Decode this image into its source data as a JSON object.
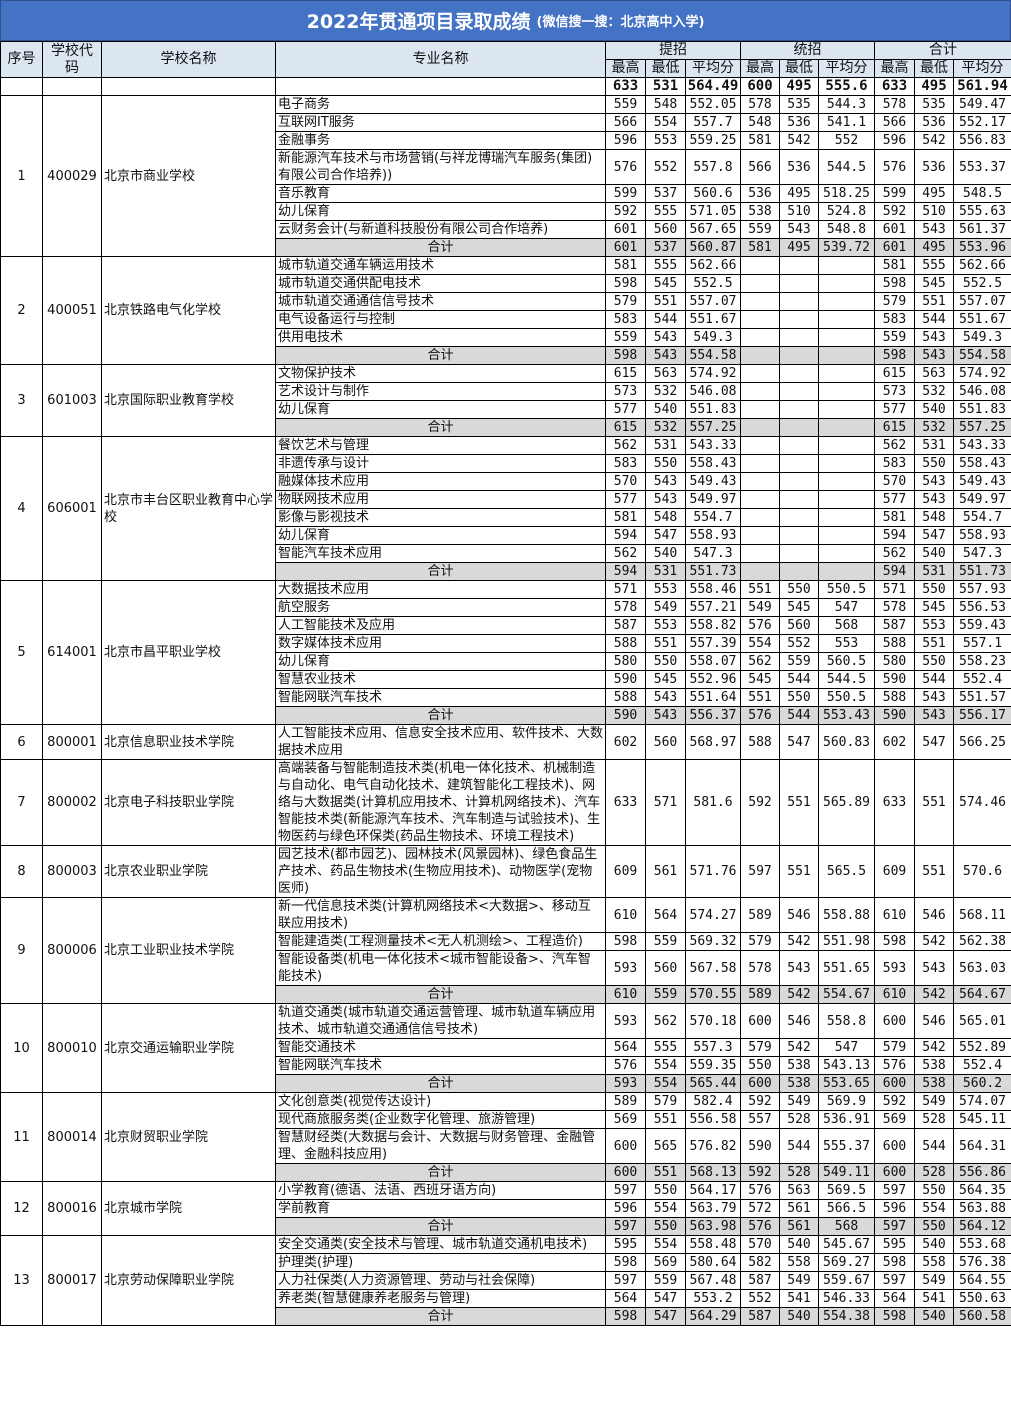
{
  "title": "2022年贯通项目录取成绩",
  "subtitle": "(微信搜一搜：北京高中入学)",
  "headers": {
    "no": "序号",
    "code": "学校代码",
    "school": "学校名称",
    "major": "专业名称",
    "groups": [
      "提招",
      "统招",
      "合计"
    ],
    "sub": [
      "最高",
      "最低",
      "平均分"
    ]
  },
  "summary": [
    "633",
    "531",
    "564.49",
    "600",
    "495",
    "555.6",
    "633",
    "495",
    "561.94"
  ],
  "total_label": "合计",
  "schools": [
    {
      "no": "1",
      "code": "400029",
      "name": "北京市商业学校",
      "majors": [
        [
          "电子商务",
          "559",
          "548",
          "552.05",
          "578",
          "535",
          "544.3",
          "578",
          "535",
          "549.47"
        ],
        [
          "互联网IT服务",
          "566",
          "554",
          "557.7",
          "548",
          "536",
          "541.1",
          "566",
          "536",
          "552.17"
        ],
        [
          "金融事务",
          "596",
          "553",
          "559.25",
          "581",
          "542",
          "552",
          "596",
          "542",
          "556.83"
        ],
        [
          "新能源汽车技术与市场营销(与祥龙博瑞汽车服务(集团)有限公司合作培养))",
          "576",
          "552",
          "557.8",
          "566",
          "536",
          "544.5",
          "576",
          "536",
          "553.37"
        ],
        [
          "音乐教育",
          "599",
          "537",
          "560.6",
          "536",
          "495",
          "518.25",
          "599",
          "495",
          "548.5"
        ],
        [
          "幼儿保育",
          "592",
          "555",
          "571.05",
          "538",
          "510",
          "524.8",
          "592",
          "510",
          "555.63"
        ],
        [
          "云财务会计(与新道科技股份有限公司合作培养)",
          "601",
          "560",
          "567.65",
          "559",
          "543",
          "548.8",
          "601",
          "543",
          "561.37"
        ]
      ],
      "total": [
        "601",
        "537",
        "560.87",
        "581",
        "495",
        "539.72",
        "601",
        "495",
        "553.96"
      ]
    },
    {
      "no": "2",
      "code": "400051",
      "name": "北京铁路电气化学校",
      "majors": [
        [
          "城市轨道交通车辆运用技术",
          "581",
          "555",
          "562.66",
          "",
          "",
          "",
          "581",
          "555",
          "562.66"
        ],
        [
          "城市轨道交通供配电技术",
          "598",
          "545",
          "552.5",
          "",
          "",
          "",
          "598",
          "545",
          "552.5"
        ],
        [
          "城市轨道交通通信信号技术",
          "579",
          "551",
          "557.07",
          "",
          "",
          "",
          "579",
          "551",
          "557.07"
        ],
        [
          "电气设备运行与控制",
          "583",
          "544",
          "551.67",
          "",
          "",
          "",
          "583",
          "544",
          "551.67"
        ],
        [
          "供用电技术",
          "559",
          "543",
          "549.3",
          "",
          "",
          "",
          "559",
          "543",
          "549.3"
        ]
      ],
      "total": [
        "598",
        "543",
        "554.58",
        "",
        "",
        "",
        "598",
        "543",
        "554.58"
      ]
    },
    {
      "no": "3",
      "code": "601003",
      "name": "北京国际职业教育学校",
      "majors": [
        [
          "文物保护技术",
          "615",
          "563",
          "574.92",
          "",
          "",
          "",
          "615",
          "563",
          "574.92"
        ],
        [
          "艺术设计与制作",
          "573",
          "532",
          "546.08",
          "",
          "",
          "",
          "573",
          "532",
          "546.08"
        ],
        [
          "幼儿保育",
          "577",
          "540",
          "551.83",
          "",
          "",
          "",
          "577",
          "540",
          "551.83"
        ]
      ],
      "total": [
        "615",
        "532",
        "557.25",
        "",
        "",
        "",
        "615",
        "532",
        "557.25"
      ]
    },
    {
      "no": "4",
      "code": "606001",
      "name": "北京市丰台区职业教育中心学校",
      "majors": [
        [
          "餐饮艺术与管理",
          "562",
          "531",
          "543.33",
          "",
          "",
          "",
          "562",
          "531",
          "543.33"
        ],
        [
          "非遗传承与设计",
          "583",
          "550",
          "558.43",
          "",
          "",
          "",
          "583",
          "550",
          "558.43"
        ],
        [
          "融媒体技术应用",
          "570",
          "543",
          "549.43",
          "",
          "",
          "",
          "570",
          "543",
          "549.43"
        ],
        [
          "物联网技术应用",
          "577",
          "543",
          "549.97",
          "",
          "",
          "",
          "577",
          "543",
          "549.97"
        ],
        [
          "影像与影视技术",
          "581",
          "548",
          "554.7",
          "",
          "",
          "",
          "581",
          "548",
          "554.7"
        ],
        [
          "幼儿保育",
          "594",
          "547",
          "558.93",
          "",
          "",
          "",
          "594",
          "547",
          "558.93"
        ],
        [
          "智能汽车技术应用",
          "562",
          "540",
          "547.3",
          "",
          "",
          "",
          "562",
          "540",
          "547.3"
        ]
      ],
      "total": [
        "594",
        "531",
        "551.73",
        "",
        "",
        "",
        "594",
        "531",
        "551.73"
      ]
    },
    {
      "no": "5",
      "code": "614001",
      "name": "北京市昌平职业学校",
      "majors": [
        [
          "大数据技术应用",
          "571",
          "553",
          "558.46",
          "551",
          "550",
          "550.5",
          "571",
          "550",
          "557.93"
        ],
        [
          "航空服务",
          "578",
          "549",
          "557.21",
          "549",
          "545",
          "547",
          "578",
          "545",
          "556.53"
        ],
        [
          "人工智能技术及应用",
          "587",
          "553",
          "558.82",
          "576",
          "560",
          "568",
          "587",
          "553",
          "559.43"
        ],
        [
          "数字媒体技术应用",
          "588",
          "551",
          "557.39",
          "554",
          "552",
          "553",
          "588",
          "551",
          "557.1"
        ],
        [
          "幼儿保育",
          "580",
          "550",
          "558.07",
          "562",
          "559",
          "560.5",
          "580",
          "550",
          "558.23"
        ],
        [
          "智慧农业技术",
          "590",
          "545",
          "552.96",
          "545",
          "544",
          "544.5",
          "590",
          "544",
          "552.4"
        ],
        [
          "智能网联汽车技术",
          "588",
          "543",
          "551.64",
          "551",
          "550",
          "550.5",
          "588",
          "543",
          "551.57"
        ]
      ],
      "total": [
        "590",
        "543",
        "556.37",
        "576",
        "544",
        "553.43",
        "590",
        "543",
        "556.17"
      ]
    },
    {
      "no": "6",
      "code": "800001",
      "name": "北京信息职业技术学院",
      "majors": [
        [
          "人工智能技术应用、信息安全技术应用、软件技术、大数据技术应用",
          "602",
          "560",
          "568.97",
          "588",
          "547",
          "560.83",
          "602",
          "547",
          "566.25"
        ]
      ]
    },
    {
      "no": "7",
      "code": "800002",
      "name": "北京电子科技职业学院",
      "majors": [
        [
          "高端装备与智能制造技术类(机电一体化技术、机械制造与自动化、电气自动化技术、建筑智能化工程技术)、网络与大数据类(计算机应用技术、计算机网络技术)、汽车智能技术类(新能源汽车技术、汽车制造与试验技术)、生物医药与绿色环保类(药品生物技术、环境工程技术)",
          "633",
          "571",
          "581.6",
          "592",
          "551",
          "565.89",
          "633",
          "551",
          "574.46"
        ]
      ]
    },
    {
      "no": "8",
      "code": "800003",
      "name": "北京农业职业学院",
      "majors": [
        [
          "园艺技术(都市园艺)、园林技术(风景园林)、绿色食品生产技术、药品生物技术(生物应用技术)、动物医学(宠物医师)",
          "609",
          "561",
          "571.76",
          "597",
          "551",
          "565.5",
          "609",
          "551",
          "570.6"
        ]
      ]
    },
    {
      "no": "9",
      "code": "800006",
      "name": "北京工业职业技术学院",
      "majors": [
        [
          "新一代信息技术类(计算机网络技术<大数据>、移动互联应用技术)",
          "610",
          "564",
          "574.27",
          "589",
          "546",
          "558.88",
          "610",
          "546",
          "568.11"
        ],
        [
          "智能建造类(工程测量技术<无人机测绘>、工程造价)",
          "598",
          "559",
          "569.32",
          "579",
          "542",
          "551.98",
          "598",
          "542",
          "562.38"
        ],
        [
          "智能设备类(机电一体化技术<城市智能设备>、汽车智能技术)",
          "593",
          "560",
          "567.58",
          "578",
          "543",
          "551.65",
          "593",
          "543",
          "563.03"
        ]
      ],
      "total": [
        "610",
        "559",
        "570.55",
        "589",
        "542",
        "554.67",
        "610",
        "542",
        "564.67"
      ]
    },
    {
      "no": "10",
      "code": "800010",
      "name": "北京交通运输职业学院",
      "majors": [
        [
          "轨道交通类(城市轨道交通运营管理、城市轨道车辆应用技术、城市轨道交通通信信号技术)",
          "593",
          "562",
          "570.18",
          "600",
          "546",
          "558.8",
          "600",
          "546",
          "565.01"
        ],
        [
          "智能交通技术",
          "564",
          "555",
          "557.3",
          "579",
          "542",
          "547",
          "579",
          "542",
          "552.89"
        ],
        [
          "智能网联汽车技术",
          "576",
          "554",
          "559.35",
          "550",
          "538",
          "543.13",
          "576",
          "538",
          "552.4"
        ]
      ],
      "total": [
        "593",
        "554",
        "565.44",
        "600",
        "538",
        "553.65",
        "600",
        "538",
        "560.2"
      ]
    },
    {
      "no": "11",
      "code": "800014",
      "name": "北京财贸职业学院",
      "majors": [
        [
          "文化创意类(视觉传达设计)",
          "589",
          "579",
          "582.4",
          "592",
          "549",
          "569.9",
          "592",
          "549",
          "574.07"
        ],
        [
          "现代商旅服务类(企业数字化管理、旅游管理)",
          "569",
          "551",
          "556.58",
          "557",
          "528",
          "536.91",
          "569",
          "528",
          "545.11"
        ],
        [
          "智慧财经类(大数据与会计、大数据与财务管理、金融管理、金融科技应用)",
          "600",
          "565",
          "576.82",
          "590",
          "544",
          "555.37",
          "600",
          "544",
          "564.31"
        ]
      ],
      "total": [
        "600",
        "551",
        "568.13",
        "592",
        "528",
        "549.11",
        "600",
        "528",
        "556.86"
      ]
    },
    {
      "no": "12",
      "code": "800016",
      "name": "北京城市学院",
      "majors": [
        [
          "小学教育(德语、法语、西班牙语方向)",
          "597",
          "550",
          "564.17",
          "576",
          "563",
          "569.5",
          "597",
          "550",
          "564.35"
        ],
        [
          "学前教育",
          "596",
          "554",
          "563.79",
          "572",
          "561",
          "566.5",
          "596",
          "554",
          "563.88"
        ]
      ],
      "total": [
        "597",
        "550",
        "563.98",
        "576",
        "561",
        "568",
        "597",
        "550",
        "564.12"
      ]
    },
    {
      "no": "13",
      "code": "800017",
      "name": "北京劳动保障职业学院",
      "majors": [
        [
          "安全交通类(安全技术与管理、城市轨道交通机电技术)",
          "595",
          "554",
          "558.48",
          "570",
          "540",
          "545.67",
          "595",
          "540",
          "553.68"
        ],
        [
          "护理类(护理)",
          "598",
          "569",
          "580.64",
          "582",
          "558",
          "569.27",
          "598",
          "558",
          "576.38"
        ],
        [
          "人力社保类(人力资源管理、劳动与社会保障)",
          "597",
          "559",
          "567.48",
          "587",
          "549",
          "559.67",
          "597",
          "549",
          "564.55"
        ],
        [
          "养老类(智慧健康养老服务与管理)",
          "564",
          "547",
          "553.2",
          "552",
          "541",
          "546.33",
          "564",
          "541",
          "550.63"
        ]
      ],
      "total": [
        "598",
        "547",
        "564.29",
        "587",
        "540",
        "554.38",
        "598",
        "540",
        "560.58"
      ]
    }
  ]
}
